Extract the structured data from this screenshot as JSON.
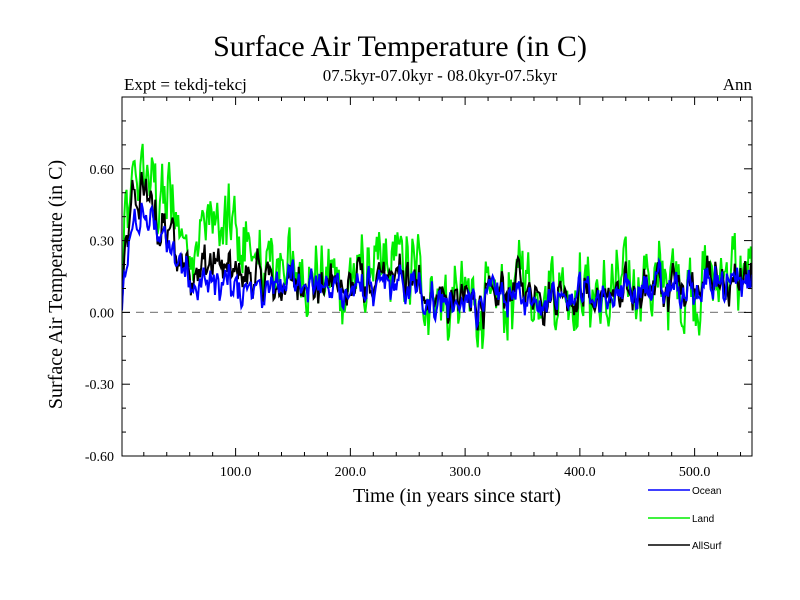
{
  "chart_data": {
    "type": "line",
    "title": "Surface Air Temperature (in C)",
    "subtitle": "07.5kyr-07.0kyr - 08.0kyr-07.5kyr",
    "experiment": "Expt = tekdj-tekcj",
    "season": "Ann",
    "xlabel": "Time (in years since start)",
    "ylabel": "Surface Air Temperature (in C)",
    "xlim": [
      1,
      550
    ],
    "ylim": [
      -0.6,
      0.9
    ],
    "x_ticks": [
      100,
      200,
      300,
      400,
      500
    ],
    "x_tick_labels": [
      "100.0",
      "200.0",
      "300.0",
      "400.0",
      "500.0"
    ],
    "y_ticks": [
      -0.6,
      -0.3,
      0.0,
      0.3,
      0.6
    ],
    "y_tick_labels": [
      "-0.60",
      "-0.30",
      "0.00",
      "0.30",
      "0.60"
    ],
    "zero_line": "dashed",
    "series": [
      {
        "name": "Ocean",
        "color": "#0000ff",
        "anchors": [
          [
            1,
            0.05
          ],
          [
            10,
            0.35
          ],
          [
            20,
            0.42
          ],
          [
            35,
            0.3
          ],
          [
            50,
            0.22
          ],
          [
            60,
            0.15
          ],
          [
            80,
            0.12
          ],
          [
            100,
            0.1
          ],
          [
            120,
            0.1
          ],
          [
            140,
            0.12
          ],
          [
            160,
            0.13
          ],
          [
            180,
            0.1
          ],
          [
            200,
            0.08
          ],
          [
            220,
            0.1
          ],
          [
            240,
            0.12
          ],
          [
            260,
            0.08
          ],
          [
            280,
            0.05
          ],
          [
            300,
            0.02
          ],
          [
            320,
            0.05
          ],
          [
            340,
            0.08
          ],
          [
            360,
            0.08
          ],
          [
            380,
            0.08
          ],
          [
            400,
            0.08
          ],
          [
            420,
            0.06
          ],
          [
            440,
            0.07
          ],
          [
            460,
            0.1
          ],
          [
            480,
            0.1
          ],
          [
            500,
            0.12
          ],
          [
            520,
            0.12
          ],
          [
            550,
            0.12
          ]
        ],
        "amplitude": 0.1
      },
      {
        "name": "Land",
        "color": "#00ee00",
        "anchors": [
          [
            1,
            0.15
          ],
          [
            10,
            0.55
          ],
          [
            20,
            0.6
          ],
          [
            35,
            0.45
          ],
          [
            50,
            0.35
          ],
          [
            60,
            0.25
          ],
          [
            80,
            0.4
          ],
          [
            100,
            0.3
          ],
          [
            120,
            0.2
          ],
          [
            140,
            0.15
          ],
          [
            160,
            0.22
          ],
          [
            180,
            0.15
          ],
          [
            200,
            0.15
          ],
          [
            220,
            0.18
          ],
          [
            240,
            0.25
          ],
          [
            260,
            0.15
          ],
          [
            280,
            0.05
          ],
          [
            300,
            0.02
          ],
          [
            320,
            0.05
          ],
          [
            340,
            0.1
          ],
          [
            360,
            0.1
          ],
          [
            380,
            0.1
          ],
          [
            400,
            0.1
          ],
          [
            420,
            0.05
          ],
          [
            440,
            0.1
          ],
          [
            460,
            0.15
          ],
          [
            480,
            0.1
          ],
          [
            500,
            0.15
          ],
          [
            520,
            0.15
          ],
          [
            550,
            0.15
          ]
        ],
        "amplitude": 0.22
      },
      {
        "name": "AllSurf",
        "color": "#000000",
        "anchors": [
          [
            1,
            0.08
          ],
          [
            10,
            0.45
          ],
          [
            20,
            0.5
          ],
          [
            35,
            0.35
          ],
          [
            50,
            0.28
          ],
          [
            60,
            0.18
          ],
          [
            80,
            0.22
          ],
          [
            100,
            0.15
          ],
          [
            120,
            0.13
          ],
          [
            140,
            0.13
          ],
          [
            160,
            0.15
          ],
          [
            180,
            0.12
          ],
          [
            200,
            0.1
          ],
          [
            220,
            0.12
          ],
          [
            240,
            0.16
          ],
          [
            260,
            0.1
          ],
          [
            280,
            0.05
          ],
          [
            300,
            0.02
          ],
          [
            320,
            0.05
          ],
          [
            340,
            0.09
          ],
          [
            360,
            0.09
          ],
          [
            380,
            0.09
          ],
          [
            400,
            0.09
          ],
          [
            420,
            0.06
          ],
          [
            440,
            0.08
          ],
          [
            460,
            0.12
          ],
          [
            480,
            0.1
          ],
          [
            500,
            0.13
          ],
          [
            520,
            0.13
          ],
          [
            550,
            0.13
          ]
        ],
        "amplitude": 0.12
      }
    ]
  }
}
